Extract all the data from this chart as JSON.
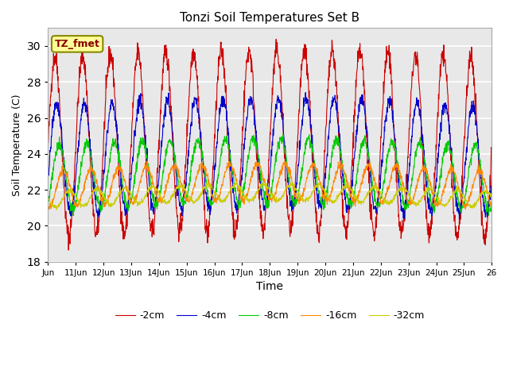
{
  "title": "Tonzi Soil Temperatures Set B",
  "xlabel": "Time",
  "ylabel": "Soil Temperature (C)",
  "ylim": [
    18,
    31
  ],
  "xlim_days": 16,
  "annotation_text": "TZ_fmet",
  "annotation_color": "#880000",
  "annotation_bg": "#ffff99",
  "annotation_border": "#888800",
  "series": [
    {
      "label": "-2cm",
      "color": "#cc0000",
      "amplitude": 5.0,
      "mean": 24.5,
      "phase": 0.0,
      "noise": 0.3
    },
    {
      "label": "-4cm",
      "color": "#0000cc",
      "amplitude": 3.0,
      "mean": 23.8,
      "phase": 0.12,
      "noise": 0.2
    },
    {
      "label": "-8cm",
      "color": "#00cc00",
      "amplitude": 1.8,
      "mean": 22.8,
      "phase": 0.3,
      "noise": 0.15
    },
    {
      "label": "-16cm",
      "color": "#ff8800",
      "amplitude": 1.0,
      "mean": 22.2,
      "phase": 0.6,
      "noise": 0.1
    },
    {
      "label": "-32cm",
      "color": "#cccc00",
      "amplitude": 0.45,
      "mean": 21.6,
      "phase": 1.05,
      "noise": 0.06
    }
  ],
  "bg_color": "#e8e8e8",
  "fig_bg_color": "#ffffff",
  "grid_color": "#ffffff",
  "n_points": 1600,
  "tick_labels": [
    "Jun",
    "11Jun",
    "12Jun",
    "13Jun",
    "14Jun",
    "15Jun",
    "16Jun",
    "17Jun",
    "18Jun",
    "19Jun",
    "20Jun",
    "21Jun",
    "22Jun",
    "23Jun",
    "24Jun",
    "25Jun",
    "26"
  ],
  "tick_positions": [
    0,
    1,
    2,
    3,
    4,
    5,
    6,
    7,
    8,
    9,
    10,
    11,
    12,
    13,
    14,
    15,
    16
  ],
  "yticks": [
    18,
    20,
    22,
    24,
    26,
    28,
    30
  ]
}
